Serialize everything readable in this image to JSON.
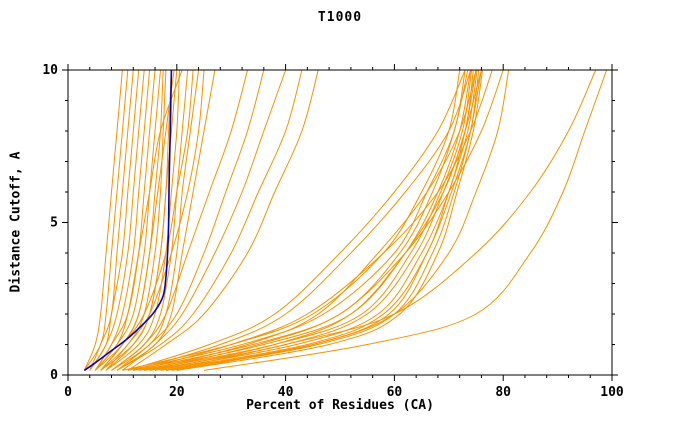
{
  "chart_data": {
    "type": "line",
    "title": "T1000",
    "xlabel": "Percent of Residues (CA)",
    "ylabel": "Distance Cutoff, A",
    "xlim": [
      0,
      100
    ],
    "ylim": [
      0,
      10
    ],
    "xticks": [
      0,
      20,
      40,
      60,
      80,
      100
    ],
    "yticks": [
      0,
      5,
      10
    ],
    "minor_xtick_step": 4,
    "minor_ytick_step": 1,
    "grid": false,
    "legend": "none",
    "colors": {
      "prediction": "#F59300",
      "highlight": "#0000CD",
      "axis": "#000000"
    },
    "y_samples": [
      0.15,
      1,
      2,
      4,
      6,
      8,
      10
    ],
    "prediction_curves_x": [
      [
        3,
        5,
        6,
        7,
        8,
        9,
        10
      ],
      [
        3,
        6,
        7,
        8,
        9,
        10,
        11
      ],
      [
        4,
        6,
        8,
        9,
        10,
        11,
        12
      ],
      [
        4,
        7,
        8,
        10,
        11,
        12,
        13
      ],
      [
        4,
        7,
        9,
        11,
        12,
        13,
        14
      ],
      [
        5,
        8,
        10,
        12,
        13,
        14,
        15
      ],
      [
        5,
        8,
        11,
        13,
        14,
        15,
        16
      ],
      [
        5,
        9,
        12,
        14,
        15,
        16,
        17
      ],
      [
        5,
        10,
        13,
        15,
        16,
        17,
        17.5
      ],
      [
        6,
        11,
        14,
        16,
        17,
        17.5,
        18
      ],
      [
        6,
        12,
        15,
        17,
        18,
        18.5,
        19
      ],
      [
        6,
        10,
        13,
        15,
        16.5,
        18,
        19.5
      ],
      [
        7,
        12,
        15,
        17,
        18,
        19,
        20
      ],
      [
        7,
        13,
        16,
        18,
        19,
        20,
        20.5
      ],
      [
        5,
        9,
        11,
        13,
        15,
        17,
        21
      ],
      [
        8,
        14,
        17,
        19,
        20,
        21,
        22
      ],
      [
        6,
        10,
        14,
        18,
        20,
        22,
        23
      ],
      [
        8,
        15,
        18,
        20,
        21,
        22.5,
        24
      ],
      [
        7,
        11,
        15,
        19,
        22,
        24,
        25
      ],
      [
        9,
        16,
        19,
        21,
        23,
        25,
        27
      ],
      [
        8,
        14,
        18,
        22,
        26,
        30,
        33
      ],
      [
        9,
        15,
        20,
        25,
        29,
        33,
        36
      ],
      [
        10,
        16,
        21,
        27,
        32,
        36,
        40
      ],
      [
        9,
        17,
        23,
        30,
        35,
        40,
        43
      ],
      [
        11,
        18,
        25,
        33,
        38,
        43,
        46
      ],
      [
        10,
        30,
        45,
        58,
        65,
        70,
        72
      ],
      [
        11,
        32,
        47,
        60,
        66,
        71,
        73
      ],
      [
        12,
        34,
        50,
        61,
        67,
        71,
        73.5
      ],
      [
        13,
        36,
        52,
        62,
        68,
        72,
        74
      ],
      [
        14,
        38,
        54,
        63,
        68.5,
        72.5,
        74.2
      ],
      [
        15,
        40,
        55,
        64,
        69,
        73,
        74.5
      ],
      [
        16,
        42,
        57,
        65,
        70,
        73,
        75
      ],
      [
        17,
        44,
        58,
        66,
        70,
        73.5,
        75.2
      ],
      [
        18,
        45,
        59,
        66,
        70.5,
        74,
        75.5
      ],
      [
        19,
        46,
        60,
        67,
        71,
        74,
        76
      ],
      [
        20,
        48,
        61,
        68,
        71.5,
        74.5,
        76.2
      ],
      [
        12,
        28,
        40,
        52,
        62,
        70,
        74
      ],
      [
        14,
        33,
        46,
        57,
        66,
        72,
        75
      ],
      [
        16,
        38,
        52,
        62,
        69,
        73,
        76
      ],
      [
        11,
        26,
        38,
        50,
        60,
        68,
        73
      ],
      [
        15,
        35,
        50,
        62,
        70,
        76,
        80
      ],
      [
        13,
        30,
        44,
        58,
        68,
        74,
        78
      ],
      [
        20,
        45,
        60,
        70,
        75,
        79,
        81
      ],
      [
        18,
        40,
        60,
        75,
        85,
        92,
        97
      ],
      [
        25,
        55,
        75,
        85,
        91,
        95,
        99
      ]
    ],
    "highlight_curve_points": [
      [
        3,
        0.15
      ],
      [
        5,
        0.4
      ],
      [
        8,
        0.8
      ],
      [
        11,
        1.2
      ],
      [
        14,
        1.7
      ],
      [
        16,
        2.1
      ],
      [
        17.5,
        2.6
      ],
      [
        18,
        3.2
      ],
      [
        18.3,
        4
      ],
      [
        18.5,
        5
      ],
      [
        18.6,
        6.5
      ],
      [
        18.8,
        8
      ],
      [
        19,
        10
      ]
    ]
  }
}
